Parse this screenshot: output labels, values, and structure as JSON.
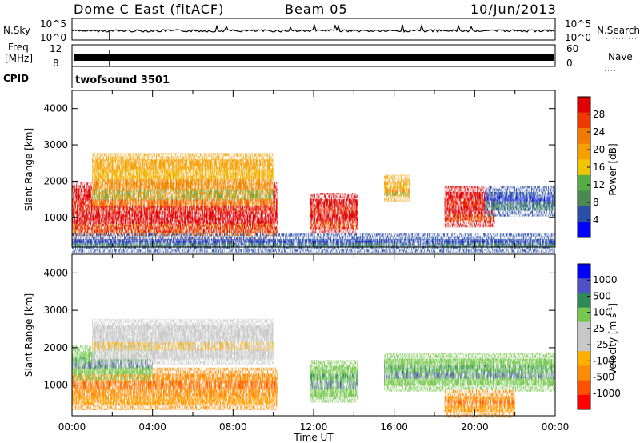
{
  "header": {
    "station": "Dome C East (fitACF)",
    "beam": "Beam 05",
    "date": "10/Jun/2013"
  },
  "summary_panels": {
    "nsky_label": "N.Sky",
    "nsky_ticks": [
      "10^5",
      "10^0"
    ],
    "nsearch_label": "N.Search",
    "nsearch_ticks": [
      "10^5",
      "10^0"
    ],
    "freq_label": "Freq.",
    "freq_unit": "[MHz]",
    "freq_ticks": [
      "12",
      "8"
    ],
    "nave_label": "Nave",
    "nave_ticks": [
      "60",
      "0"
    ],
    "cpid_label": "CPID",
    "cpid_value": "twofsound 3501"
  },
  "colors": {
    "power_scale": [
      "#0000ff",
      "#2a4fa8",
      "#4b8a52",
      "#58ac46",
      "#f0c400",
      "#f5a000",
      "#f27b00",
      "#f03a00",
      "#e00000"
    ],
    "velocity_scale": [
      "#ff0000",
      "#ff5000",
      "#ff8c00",
      "#ffb000",
      "#c8c8c8",
      "#c8c8c8",
      "#78c850",
      "#2e8b57",
      "#5050c8",
      "#0000ff"
    ]
  },
  "chart_data": [
    {
      "type": "heatmap",
      "name": "power",
      "xlabel": "",
      "ylabel": "Slant Range [km]",
      "ylim": [
        180,
        4500
      ],
      "xlim": [
        0,
        24
      ],
      "yticks": [
        1000,
        2000,
        3000,
        4000
      ],
      "colorbar": {
        "label": "Power [dB]",
        "ticks": [
          "28",
          "24",
          "20",
          "16",
          "12",
          "8",
          "4"
        ],
        "range": [
          0,
          32
        ]
      },
      "echo_regions": [
        {
          "x": [
            0.0,
            10.2
          ],
          "y": [
            500,
            1800
          ],
          "level": "high"
        },
        {
          "x": [
            1.0,
            10.0
          ],
          "y": [
            1500,
            2600
          ],
          "level": "medium"
        },
        {
          "x": [
            11.8,
            14.2
          ],
          "y": [
            700,
            1500
          ],
          "level": "high"
        },
        {
          "x": [
            15.5,
            16.8
          ],
          "y": [
            1600,
            2000
          ],
          "level": "medium"
        },
        {
          "x": [
            18.5,
            21.0
          ],
          "y": [
            900,
            1700
          ],
          "level": "high"
        },
        {
          "x": [
            20.5,
            24.0
          ],
          "y": [
            1200,
            1700
          ],
          "level": "low"
        },
        {
          "x": [
            0.0,
            24.0
          ],
          "y": [
            200,
            400
          ],
          "level": "low"
        }
      ]
    },
    {
      "type": "heatmap",
      "name": "velocity",
      "xlabel": "Time UT",
      "ylabel": "Slant Range [km]",
      "ylim": [
        180,
        4500
      ],
      "xlim": [
        0,
        24
      ],
      "xticks": [
        "00:00",
        "04:00",
        "08:00",
        "12:00",
        "16:00",
        "20:00",
        "00:00"
      ],
      "yticks": [
        1000,
        2000,
        3000,
        4000
      ],
      "colorbar": {
        "label": "Velocity [m s",
        "label_superscript": "-1",
        "label_close": "]",
        "ticks": [
          "1000",
          "500",
          "100",
          "25",
          "-25",
          "-100",
          "-500",
          "-1000"
        ]
      },
      "echo_regions": [
        {
          "x": [
            0.0,
            10.2
          ],
          "y": [
            500,
            1300
          ],
          "level": "negative"
        },
        {
          "x": [
            0.0,
            4.0
          ],
          "y": [
            1300,
            1900
          ],
          "level": "positive"
        },
        {
          "x": [
            1.0,
            10.0
          ],
          "y": [
            1700,
            2600
          ],
          "level": "near-zero"
        },
        {
          "x": [
            11.8,
            14.2
          ],
          "y": [
            700,
            1500
          ],
          "level": "positive"
        },
        {
          "x": [
            15.5,
            24.0
          ],
          "y": [
            1000,
            1700
          ],
          "level": "positive"
        },
        {
          "x": [
            18.5,
            22.0
          ],
          "y": [
            300,
            700
          ],
          "level": "negative"
        }
      ]
    }
  ]
}
